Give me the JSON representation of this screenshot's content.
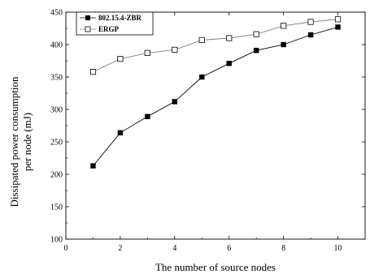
{
  "chart_data": {
    "type": "line",
    "title": "",
    "xlabel": "The number of source nodes",
    "ylabel_lines": [
      "Dissipated power consumption",
      "per node (mJ)"
    ],
    "x": [
      1,
      2,
      3,
      4,
      5,
      6,
      7,
      8,
      9,
      10
    ],
    "xlim": [
      0,
      11
    ],
    "ylim": [
      100,
      450
    ],
    "xticks": [
      0,
      2,
      4,
      6,
      8,
      10
    ],
    "yticks": [
      100,
      150,
      200,
      250,
      300,
      350,
      400,
      450
    ],
    "grid": false,
    "legend_position": "top-left",
    "series": [
      {
        "name": "802.15.4-ZBR",
        "marker": "filled-square",
        "color": "#000000",
        "values": [
          213,
          264,
          289,
          312,
          350,
          371,
          391,
          400,
          415,
          427
        ]
      },
      {
        "name": "ERGP",
        "marker": "open-square",
        "color": "#808080",
        "values": [
          358,
          378,
          387,
          392,
          407,
          410,
          416,
          429,
          435,
          439
        ]
      }
    ]
  }
}
